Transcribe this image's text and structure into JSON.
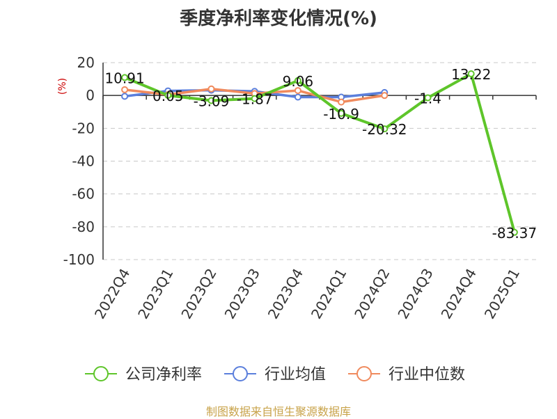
{
  "chart_data": {
    "type": "line",
    "title": "季度净利率变化情况(%)",
    "ylabel": "(%)",
    "ylim": [
      -100,
      20
    ],
    "yticks": [
      20,
      0,
      -20,
      -40,
      -60,
      -80,
      -100
    ],
    "grid": true,
    "legend_position": "bottom",
    "categories": [
      "2022Q4",
      "2023Q1",
      "2023Q2",
      "2023Q3",
      "2023Q4",
      "2024Q1",
      "2024Q2",
      "2024Q3",
      "2024Q4",
      "2025Q1"
    ],
    "series": [
      {
        "name": "公司净利率",
        "color": "#5ec52a",
        "values": [
          10.91,
          0.05,
          -3.09,
          -1.87,
          9.06,
          -10.9,
          -20.32,
          -1.4,
          13.22,
          -83.37
        ],
        "labels": [
          "10.91",
          "0.05",
          "-3.09",
          "-1.87",
          "9.06",
          "-10.9",
          "-20.32",
          "-1.4",
          "13.22",
          "-83.37"
        ]
      },
      {
        "name": "行业均值",
        "color": "#5b7fdc",
        "values": [
          -0.5,
          2.8,
          3.2,
          2.5,
          -1.0,
          -1.0,
          1.8,
          null,
          null,
          null
        ]
      },
      {
        "name": "行业中位数",
        "color": "#f08a5d",
        "values": [
          3.5,
          0.5,
          4.0,
          1.2,
          3.0,
          -4.0,
          0.0,
          null,
          null,
          null
        ]
      }
    ]
  },
  "source": "制图数据来自恒生聚源数据库"
}
